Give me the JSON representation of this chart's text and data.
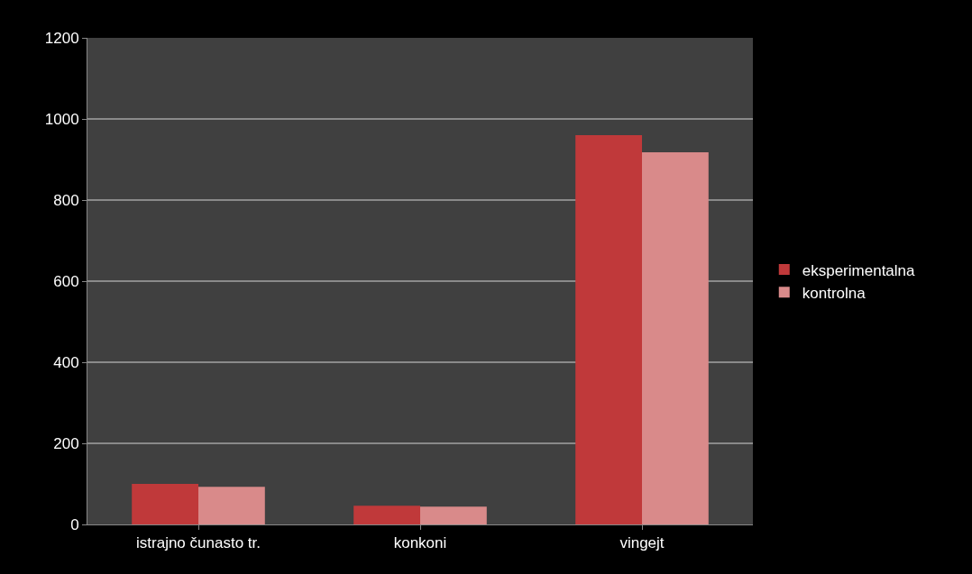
{
  "chart_data": {
    "type": "bar",
    "categories": [
      "istrajno čunasto tr.",
      "konkoni",
      "vingejt"
    ],
    "series": [
      {
        "name": "eksperimentalna",
        "color": "#c0393a",
        "values": [
          100,
          46,
          960
        ]
      },
      {
        "name": "kontrolna",
        "color": "#d98a8a",
        "values": [
          93,
          44,
          918
        ]
      }
    ],
    "ylim": [
      0,
      1200
    ],
    "yticks": [
      0,
      200,
      400,
      600,
      800,
      1000,
      1200
    ],
    "grid": "y",
    "legend": "right"
  }
}
